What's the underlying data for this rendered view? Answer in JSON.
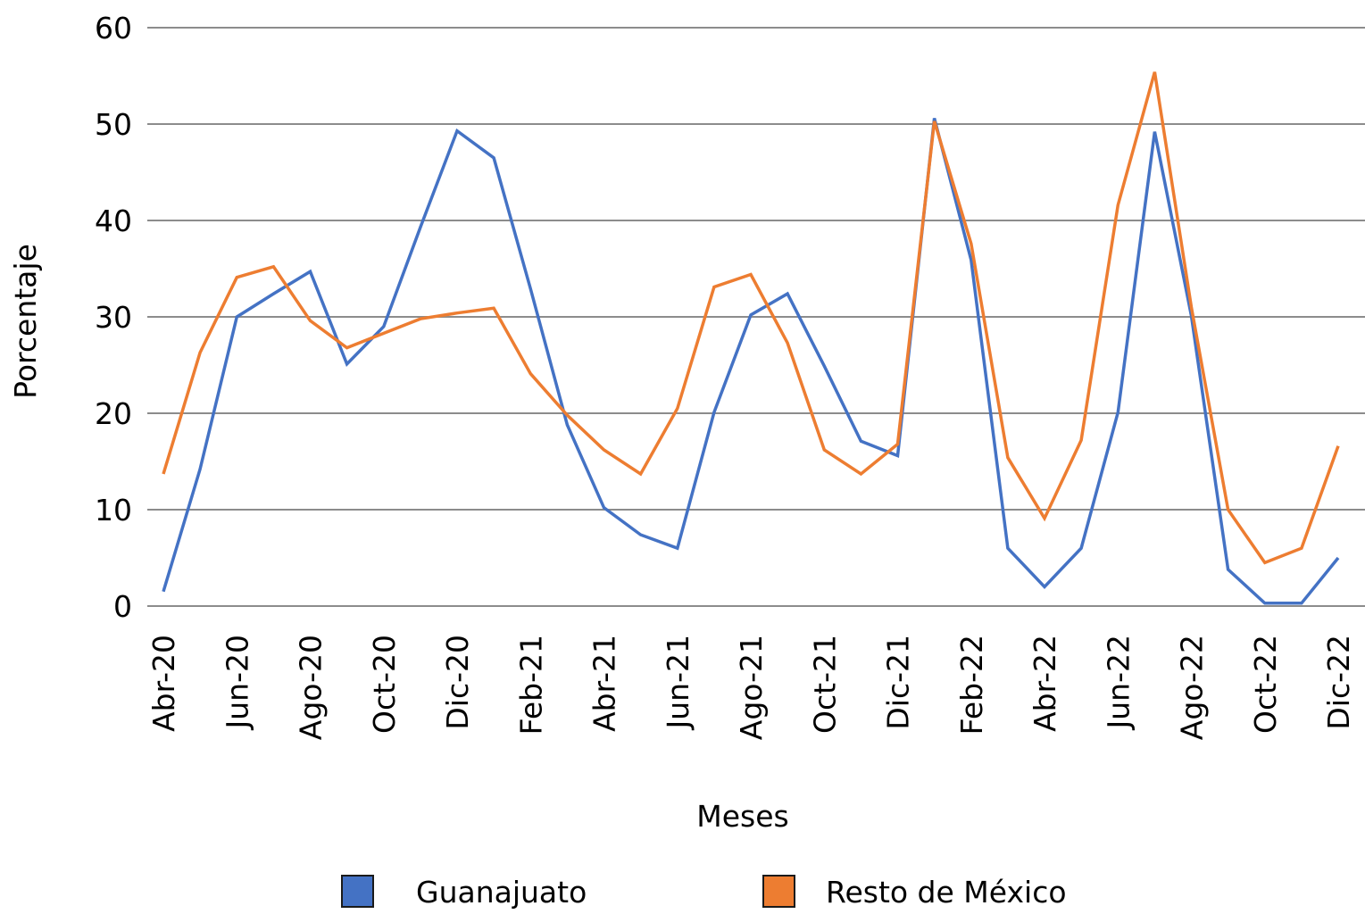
{
  "chart_data": {
    "type": "line",
    "title": "",
    "xlabel": "Meses",
    "ylabel": "Porcentaje",
    "ylim": [
      0,
      60
    ],
    "yticks": [
      "0",
      "10",
      "20",
      "30",
      "40",
      "50",
      "60"
    ],
    "grid": true,
    "legend_position": "bottom",
    "x": [
      "Abr-20",
      "May-20",
      "Jun-20",
      "Jul-20",
      "Ago-20",
      "Sep-20",
      "Oct-20",
      "Nov-20",
      "Dic-20",
      "Ene-21",
      "Feb-21",
      "Mar-21",
      "Abr-21",
      "May-21",
      "Jun-21",
      "Jul-21",
      "Ago-21",
      "Sep-21",
      "Oct-21",
      "Nov-21",
      "Dic-21",
      "Ene-22",
      "Feb-22",
      "Mar-22",
      "Abr-22",
      "May-22",
      "Jun-22",
      "Jul-22",
      "Ago-22",
      "Sep-22",
      "Oct-22",
      "Nov-22",
      "Dic-22"
    ],
    "xtick_labels": [
      "Abr-20",
      "Jun-20",
      "Ago-20",
      "Oct-20",
      "Dic-20",
      "Feb-21",
      "Abr-21",
      "Jun-21",
      "Ago-21",
      "Oct-21",
      "Dic-21",
      "Feb-22",
      "Abr-22",
      "Jun-22",
      "Ago-22",
      "Oct-22",
      "Dic-22"
    ],
    "series": [
      {
        "name": "Guanajuato",
        "color": "#4472C4",
        "values": [
          1.5,
          14.2,
          30.0,
          32.4,
          34.7,
          25.1,
          29.0,
          39.3,
          49.3,
          46.5,
          32.9,
          18.8,
          10.2,
          7.4,
          6.0,
          20.1,
          30.2,
          32.4,
          24.9,
          17.1,
          15.6,
          50.6,
          35.9,
          6.0,
          2.0,
          6.0,
          20.1,
          49.2,
          30.1,
          3.8,
          0.3,
          0.3,
          5.0
        ]
      },
      {
        "name": "Resto de México",
        "color": "#ED7D31",
        "values": [
          13.7,
          26.3,
          34.1,
          35.2,
          29.6,
          26.8,
          28.3,
          29.8,
          30.4,
          30.9,
          24.1,
          19.8,
          16.2,
          13.7,
          20.5,
          33.1,
          34.4,
          27.3,
          16.2,
          13.7,
          16.8,
          50.3,
          37.6,
          15.4,
          9.1,
          17.2,
          41.6,
          55.4,
          31.0,
          10.0,
          4.5,
          6.0,
          16.6
        ]
      }
    ]
  }
}
